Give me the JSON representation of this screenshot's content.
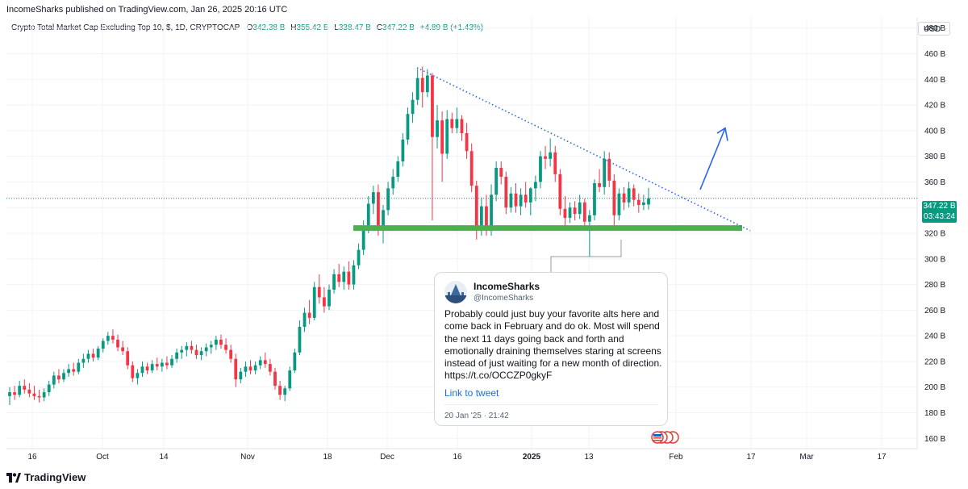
{
  "header": {
    "publisher_line": "IncomeSharks published on TradingView.com, Jan 26, 2025 20:16 UTC"
  },
  "legend": {
    "symbol": "Crypto Total Market Cap Excluding Top 10, $, 1D, CRYPTOCAP",
    "o_label": "O",
    "o_value": "342.38 B",
    "h_label": "H",
    "h_value": "355.42 B",
    "l_label": "L",
    "l_value": "338.47 B",
    "c_label": "C",
    "c_value": "347.22 B",
    "change": "+4.89 B (+1.43%)"
  },
  "currency_button": "USD",
  "price_badge": {
    "price": "347.22 B",
    "countdown": "03:43:24"
  },
  "colors": {
    "up": "#089981",
    "down": "#f23645",
    "support": "#4caf50",
    "trend": "#2962ff",
    "accent": "#2962ff"
  },
  "tweet": {
    "name": "IncomeSharks",
    "handle": "@IncomeSharks",
    "text": "Probably could just buy your favorite alts here and come back in February and do ok. Most will spend the next 11 days going back and forth and emotionally draining themselves staring at screens instead of just waiting for a new month of direction. https://t.co/OCCZP0gkyF",
    "link_label": "Link to tweet",
    "date": "20 Jan '25 · 21:42"
  },
  "footer": {
    "brand": "TradingView"
  },
  "chart_data": {
    "type": "candlestick",
    "title": "Crypto Total Market Cap Excluding Top 10, $, 1D, CRYPTOCAP",
    "ylabel": "USD",
    "ylim": [
      152,
      488
    ],
    "y_ticks": [
      "160 B",
      "180 B",
      "200 B",
      "220 B",
      "240 B",
      "260 B",
      "280 B",
      "300 B",
      "320 B",
      "340 B",
      "360 B",
      "380 B",
      "400 B",
      "420 B",
      "440 B",
      "460 B",
      "480 B"
    ],
    "x_ticks": [
      "16",
      "Oct",
      "14",
      "Nov",
      "18",
      "Dec",
      "16",
      "2025",
      "13",
      "Feb",
      "17",
      "Mar",
      "17"
    ],
    "period": "1D",
    "last_close": 347.22,
    "support_level": 324,
    "series": [
      {
        "o": 193,
        "h": 200,
        "l": 186,
        "c": 196
      },
      {
        "o": 196,
        "h": 201,
        "l": 190,
        "c": 194
      },
      {
        "o": 194,
        "h": 205,
        "l": 192,
        "c": 201
      },
      {
        "o": 201,
        "h": 206,
        "l": 195,
        "c": 198
      },
      {
        "o": 198,
        "h": 203,
        "l": 192,
        "c": 195
      },
      {
        "o": 195,
        "h": 201,
        "l": 190,
        "c": 193
      },
      {
        "o": 193,
        "h": 198,
        "l": 188,
        "c": 192
      },
      {
        "o": 192,
        "h": 199,
        "l": 189,
        "c": 196
      },
      {
        "o": 196,
        "h": 205,
        "l": 193,
        "c": 202
      },
      {
        "o": 202,
        "h": 212,
        "l": 199,
        "c": 209
      },
      {
        "o": 209,
        "h": 214,
        "l": 203,
        "c": 206
      },
      {
        "o": 206,
        "h": 214,
        "l": 204,
        "c": 211
      },
      {
        "o": 211,
        "h": 218,
        "l": 208,
        "c": 214
      },
      {
        "o": 214,
        "h": 219,
        "l": 209,
        "c": 212
      },
      {
        "o": 212,
        "h": 222,
        "l": 210,
        "c": 219
      },
      {
        "o": 219,
        "h": 226,
        "l": 215,
        "c": 222
      },
      {
        "o": 222,
        "h": 229,
        "l": 219,
        "c": 226
      },
      {
        "o": 226,
        "h": 230,
        "l": 220,
        "c": 223
      },
      {
        "o": 223,
        "h": 232,
        "l": 221,
        "c": 230
      },
      {
        "o": 230,
        "h": 238,
        "l": 227,
        "c": 236
      },
      {
        "o": 236,
        "h": 243,
        "l": 233,
        "c": 240
      },
      {
        "o": 240,
        "h": 245,
        "l": 234,
        "c": 237
      },
      {
        "o": 237,
        "h": 241,
        "l": 228,
        "c": 231
      },
      {
        "o": 231,
        "h": 236,
        "l": 225,
        "c": 228
      },
      {
        "o": 228,
        "h": 231,
        "l": 214,
        "c": 217
      },
      {
        "o": 217,
        "h": 220,
        "l": 204,
        "c": 207
      },
      {
        "o": 207,
        "h": 214,
        "l": 202,
        "c": 211
      },
      {
        "o": 211,
        "h": 220,
        "l": 208,
        "c": 216
      },
      {
        "o": 216,
        "h": 219,
        "l": 210,
        "c": 213
      },
      {
        "o": 213,
        "h": 221,
        "l": 211,
        "c": 218
      },
      {
        "o": 218,
        "h": 223,
        "l": 213,
        "c": 216
      },
      {
        "o": 216,
        "h": 222,
        "l": 212,
        "c": 219
      },
      {
        "o": 219,
        "h": 224,
        "l": 214,
        "c": 217
      },
      {
        "o": 217,
        "h": 225,
        "l": 215,
        "c": 222
      },
      {
        "o": 222,
        "h": 230,
        "l": 219,
        "c": 227
      },
      {
        "o": 227,
        "h": 232,
        "l": 222,
        "c": 229
      },
      {
        "o": 229,
        "h": 235,
        "l": 224,
        "c": 232
      },
      {
        "o": 232,
        "h": 236,
        "l": 226,
        "c": 229
      },
      {
        "o": 229,
        "h": 233,
        "l": 222,
        "c": 225
      },
      {
        "o": 225,
        "h": 231,
        "l": 221,
        "c": 228
      },
      {
        "o": 228,
        "h": 234,
        "l": 224,
        "c": 231
      },
      {
        "o": 231,
        "h": 236,
        "l": 226,
        "c": 233
      },
      {
        "o": 233,
        "h": 240,
        "l": 229,
        "c": 237
      },
      {
        "o": 237,
        "h": 241,
        "l": 230,
        "c": 233
      },
      {
        "o": 233,
        "h": 238,
        "l": 226,
        "c": 229
      },
      {
        "o": 229,
        "h": 233,
        "l": 219,
        "c": 222
      },
      {
        "o": 222,
        "h": 226,
        "l": 200,
        "c": 206
      },
      {
        "o": 206,
        "h": 215,
        "l": 203,
        "c": 212
      },
      {
        "o": 212,
        "h": 220,
        "l": 208,
        "c": 216
      },
      {
        "o": 216,
        "h": 221,
        "l": 210,
        "c": 213
      },
      {
        "o": 213,
        "h": 220,
        "l": 210,
        "c": 217
      },
      {
        "o": 217,
        "h": 224,
        "l": 214,
        "c": 221
      },
      {
        "o": 221,
        "h": 227,
        "l": 215,
        "c": 218
      },
      {
        "o": 218,
        "h": 222,
        "l": 209,
        "c": 212
      },
      {
        "o": 212,
        "h": 215,
        "l": 198,
        "c": 201
      },
      {
        "o": 201,
        "h": 205,
        "l": 190,
        "c": 194
      },
      {
        "o": 194,
        "h": 201,
        "l": 189,
        "c": 199
      },
      {
        "o": 199,
        "h": 216,
        "l": 197,
        "c": 213
      },
      {
        "o": 213,
        "h": 230,
        "l": 211,
        "c": 227
      },
      {
        "o": 227,
        "h": 252,
        "l": 225,
        "c": 247
      },
      {
        "o": 247,
        "h": 262,
        "l": 243,
        "c": 258
      },
      {
        "o": 258,
        "h": 268,
        "l": 249,
        "c": 254
      },
      {
        "o": 254,
        "h": 282,
        "l": 252,
        "c": 278
      },
      {
        "o": 278,
        "h": 288,
        "l": 265,
        "c": 270
      },
      {
        "o": 270,
        "h": 278,
        "l": 258,
        "c": 263
      },
      {
        "o": 263,
        "h": 280,
        "l": 260,
        "c": 276
      },
      {
        "o": 276,
        "h": 292,
        "l": 273,
        "c": 288
      },
      {
        "o": 288,
        "h": 296,
        "l": 278,
        "c": 282
      },
      {
        "o": 282,
        "h": 294,
        "l": 276,
        "c": 290
      },
      {
        "o": 290,
        "h": 298,
        "l": 276,
        "c": 280
      },
      {
        "o": 280,
        "h": 299,
        "l": 276,
        "c": 295
      },
      {
        "o": 295,
        "h": 312,
        "l": 292,
        "c": 307
      },
      {
        "o": 307,
        "h": 330,
        "l": 303,
        "c": 325
      },
      {
        "o": 325,
        "h": 349,
        "l": 320,
        "c": 343
      },
      {
        "o": 343,
        "h": 357,
        "l": 335,
        "c": 352
      },
      {
        "o": 352,
        "h": 358,
        "l": 318,
        "c": 325
      },
      {
        "o": 325,
        "h": 342,
        "l": 312,
        "c": 338
      },
      {
        "o": 338,
        "h": 360,
        "l": 334,
        "c": 355
      },
      {
        "o": 355,
        "h": 370,
        "l": 350,
        "c": 364
      },
      {
        "o": 364,
        "h": 380,
        "l": 360,
        "c": 376
      },
      {
        "o": 376,
        "h": 398,
        "l": 372,
        "c": 393
      },
      {
        "o": 393,
        "h": 418,
        "l": 389,
        "c": 413
      },
      {
        "o": 413,
        "h": 430,
        "l": 406,
        "c": 424
      },
      {
        "o": 424,
        "h": 448,
        "l": 420,
        "c": 441
      },
      {
        "o": 441,
        "h": 450,
        "l": 418,
        "c": 430
      },
      {
        "o": 430,
        "h": 448,
        "l": 426,
        "c": 443
      },
      {
        "o": 443,
        "h": 445,
        "l": 330,
        "c": 395
      },
      {
        "o": 395,
        "h": 420,
        "l": 386,
        "c": 408
      },
      {
        "o": 408,
        "h": 415,
        "l": 360,
        "c": 382
      },
      {
        "o": 382,
        "h": 416,
        "l": 378,
        "c": 409
      },
      {
        "o": 409,
        "h": 414,
        "l": 398,
        "c": 402
      },
      {
        "o": 402,
        "h": 418,
        "l": 398,
        "c": 409
      },
      {
        "o": 409,
        "h": 412,
        "l": 392,
        "c": 398
      },
      {
        "o": 398,
        "h": 406,
        "l": 378,
        "c": 384
      },
      {
        "o": 384,
        "h": 390,
        "l": 352,
        "c": 357
      },
      {
        "o": 357,
        "h": 361,
        "l": 315,
        "c": 326
      },
      {
        "o": 326,
        "h": 348,
        "l": 318,
        "c": 341
      },
      {
        "o": 341,
        "h": 350,
        "l": 318,
        "c": 322
      },
      {
        "o": 322,
        "h": 358,
        "l": 318,
        "c": 350
      },
      {
        "o": 350,
        "h": 376,
        "l": 345,
        "c": 371
      },
      {
        "o": 371,
        "h": 376,
        "l": 358,
        "c": 364
      },
      {
        "o": 364,
        "h": 368,
        "l": 335,
        "c": 340
      },
      {
        "o": 340,
        "h": 356,
        "l": 336,
        "c": 351
      },
      {
        "o": 351,
        "h": 359,
        "l": 336,
        "c": 341
      },
      {
        "o": 341,
        "h": 355,
        "l": 334,
        "c": 350
      },
      {
        "o": 350,
        "h": 360,
        "l": 340,
        "c": 344
      },
      {
        "o": 344,
        "h": 356,
        "l": 334,
        "c": 355
      },
      {
        "o": 355,
        "h": 365,
        "l": 345,
        "c": 360
      },
      {
        "o": 360,
        "h": 384,
        "l": 355,
        "c": 380
      },
      {
        "o": 380,
        "h": 388,
        "l": 370,
        "c": 378
      },
      {
        "o": 378,
        "h": 394,
        "l": 372,
        "c": 383
      },
      {
        "o": 383,
        "h": 388,
        "l": 360,
        "c": 366
      },
      {
        "o": 366,
        "h": 370,
        "l": 334,
        "c": 339
      },
      {
        "o": 339,
        "h": 349,
        "l": 324,
        "c": 332
      },
      {
        "o": 332,
        "h": 344,
        "l": 328,
        "c": 340
      },
      {
        "o": 340,
        "h": 345,
        "l": 330,
        "c": 335
      },
      {
        "o": 335,
        "h": 350,
        "l": 331,
        "c": 344
      },
      {
        "o": 344,
        "h": 347,
        "l": 323,
        "c": 329
      },
      {
        "o": 329,
        "h": 338,
        "l": 302,
        "c": 334
      },
      {
        "o": 334,
        "h": 362,
        "l": 330,
        "c": 359
      },
      {
        "o": 359,
        "h": 370,
        "l": 352,
        "c": 356
      },
      {
        "o": 356,
        "h": 384,
        "l": 350,
        "c": 378
      },
      {
        "o": 378,
        "h": 383,
        "l": 356,
        "c": 361
      },
      {
        "o": 361,
        "h": 366,
        "l": 325,
        "c": 334
      },
      {
        "o": 334,
        "h": 355,
        "l": 330,
        "c": 351
      },
      {
        "o": 351,
        "h": 356,
        "l": 338,
        "c": 344
      },
      {
        "o": 344,
        "h": 360,
        "l": 340,
        "c": 355
      },
      {
        "o": 355,
        "h": 358,
        "l": 341,
        "c": 346
      },
      {
        "o": 346,
        "h": 351,
        "l": 336,
        "c": 342
      },
      {
        "o": 342,
        "h": 350,
        "l": 338,
        "c": 344
      },
      {
        "o": 342.38,
        "h": 355.42,
        "l": 338.47,
        "c": 347.22
      }
    ]
  }
}
